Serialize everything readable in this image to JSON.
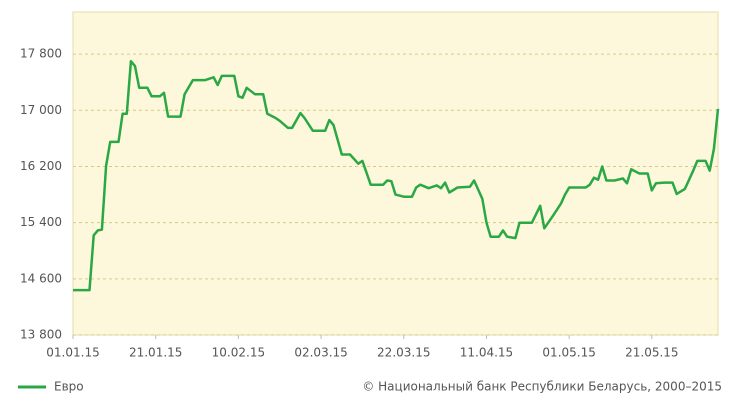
{
  "chart_data": {
    "type": "line",
    "x": [
      "01.01.15",
      "05.01.15",
      "06.01.15",
      "07.01.15",
      "08.01.15",
      "09.01.15",
      "10.01.15",
      "12.01.15",
      "13.01.15",
      "14.01.15",
      "15.01.15",
      "16.01.15",
      "17.01.15",
      "19.01.15",
      "20.01.15",
      "22.01.15",
      "23.01.15",
      "24.01.15",
      "27.01.15",
      "28.01.15",
      "30.01.15",
      "02.02.15",
      "04.02.15",
      "05.02.15",
      "06.02.15",
      "09.02.15",
      "10.02.15",
      "11.02.15",
      "12.02.15",
      "14.02.15",
      "16.02.15",
      "17.02.15",
      "19.02.15",
      "20.02.15",
      "22.02.15",
      "23.02.15",
      "25.02.15",
      "26.02.15",
      "28.02.15",
      "03.03.15",
      "04.03.15",
      "05.03.15",
      "07.03.15",
      "09.03.15",
      "11.03.15",
      "12.03.15",
      "14.03.15",
      "17.03.15",
      "18.03.15",
      "19.03.15",
      "20.03.15",
      "22.03.15",
      "24.03.15",
      "25.03.15",
      "26.03.15",
      "28.03.15",
      "30.03.15",
      "31.03.15",
      "01.04.15",
      "02.04.15",
      "04.04.15",
      "07.04.15",
      "08.04.15",
      "10.04.15",
      "11.04.15",
      "12.04.15",
      "14.04.15",
      "15.04.15",
      "16.04.15",
      "18.04.15",
      "19.04.15",
      "22.04.15",
      "24.04.15",
      "25.04.15",
      "27.04.15",
      "29.04.15",
      "30.04.15",
      "01.05.15",
      "05.05.15",
      "06.05.15",
      "07.05.15",
      "08.05.15",
      "09.05.15",
      "10.05.15",
      "12.05.15",
      "14.05.15",
      "15.05.15",
      "16.05.15",
      "18.05.15",
      "20.05.15",
      "21.05.15",
      "22.05.15",
      "24.05.15",
      "26.05.15",
      "27.05.15",
      "29.05.15",
      "31.05.15",
      "01.06.15",
      "03.06.15",
      "04.06.15",
      "05.06.15",
      "06.06.15"
    ],
    "series": [
      {
        "name": "Евро",
        "color": "#2aa845",
        "values": [
          14440,
          14440,
          15220,
          15290,
          15300,
          16210,
          16550,
          16550,
          16950,
          16950,
          17700,
          17630,
          17320,
          17320,
          17200,
          17200,
          17250,
          16910,
          16910,
          17230,
          17430,
          17430,
          17470,
          17360,
          17490,
          17490,
          17200,
          17180,
          17320,
          17230,
          17230,
          16950,
          16890,
          16850,
          16750,
          16750,
          16960,
          16890,
          16710,
          16710,
          16860,
          16790,
          16370,
          16370,
          16240,
          16280,
          15940,
          15940,
          16000,
          15990,
          15800,
          15770,
          15770,
          15900,
          15940,
          15890,
          15930,
          15890,
          15970,
          15830,
          15900,
          15910,
          16000,
          15740,
          15400,
          15200,
          15200,
          15290,
          15200,
          15180,
          15400,
          15400,
          15640,
          15320,
          15490,
          15670,
          15800,
          15900,
          15900,
          15940,
          16040,
          16010,
          16200,
          16000,
          16000,
          16030,
          15960,
          16160,
          16100,
          16100,
          15860,
          15960,
          15970,
          15970,
          15810,
          15880,
          16140,
          16280,
          16280,
          16140,
          16450,
          17020
        ]
      }
    ],
    "xlim": [
      "01.01.15",
      "06.06.15"
    ],
    "xticks": [
      "01.01.15",
      "21.01.15",
      "10.02.15",
      "02.03.15",
      "22.03.15",
      "11.04.15",
      "01.05.15",
      "21.05.15"
    ],
    "ylim": [
      13800,
      18400
    ],
    "yticks": [
      {
        "value": 13800,
        "label": "13 800"
      },
      {
        "value": 14600,
        "label": "14 600"
      },
      {
        "value": 15400,
        "label": "15 400"
      },
      {
        "value": 16200,
        "label": "16 200"
      },
      {
        "value": 17000,
        "label": "17 000"
      },
      {
        "value": 17800,
        "label": "17 800"
      }
    ],
    "grid": true,
    "legend": "bottom-left",
    "source": "© Национальный банк Республики Беларусь, 2000–2015"
  }
}
